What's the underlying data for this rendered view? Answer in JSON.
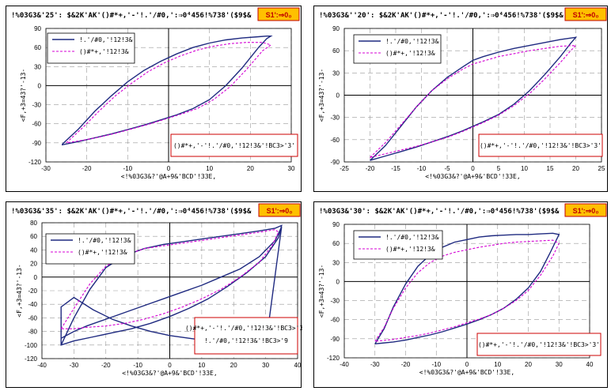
{
  "colors": {
    "series1": "#1f2a80",
    "series2": "#d400d4",
    "grid": "#999999",
    "badge_bg": "#ffc000",
    "badge_border": "#c00000",
    "annot_border": "#cc0000"
  },
  "chart_data": [
    {
      "type": "line",
      "title": "!%03G3&'25': $&2K'AK'()#*+,'-'!.'/#0,':⇒0⁴456!%738'($9$&",
      "badge": "S1':⇒0₀",
      "xlabel": "<!%03G3&?'@A+9&'BCD'!33E,",
      "ylabel": "<F,+3=43?'-13-",
      "xlim": [
        -30,
        30
      ],
      "ylim": [
        -120,
        90
      ],
      "xticks": [
        -30,
        -20,
        -10,
        0,
        10,
        20,
        30
      ],
      "yticks": [
        -120,
        -90,
        -60,
        -30,
        0,
        30,
        60,
        90
      ],
      "legend": [
        "!.'/#0,'!12!3&",
        "()#*+,'!12!3&"
      ],
      "legend_position": "top-left",
      "annotations": [
        "()#*+,'-'!.'/#0,'!12!3&'!BC3>'3'"
      ],
      "series": [
        {
          "name": "!.'/#0,'!12!3&",
          "style": "solid",
          "x": [
            -26,
            -22,
            -18,
            -14,
            -10,
            -6,
            -2,
            2,
            6,
            10,
            14,
            18,
            22,
            24,
            25,
            24,
            22,
            18,
            14,
            10,
            6,
            2,
            -2,
            -6,
            -10,
            -14,
            -18,
            -22,
            -26,
            -26
          ],
          "y": [
            -92,
            -68,
            -40,
            -16,
            6,
            24,
            38,
            50,
            60,
            67,
            72,
            75,
            77,
            78,
            78,
            74,
            60,
            28,
            0,
            -22,
            -36,
            -46,
            -54,
            -62,
            -69,
            -76,
            -82,
            -88,
            -93,
            -92
          ]
        },
        {
          "name": "()#*+,'!12!3&",
          "style": "dashed",
          "x": [
            -25,
            -21,
            -17,
            -13,
            -9,
            -5,
            -1,
            3,
            7,
            11,
            15,
            19,
            23,
            25,
            23,
            19,
            15,
            11,
            7,
            3,
            -1,
            -5,
            -9,
            -13,
            -17,
            -21,
            -25
          ],
          "y": [
            -90,
            -66,
            -40,
            -16,
            4,
            22,
            36,
            47,
            56,
            62,
            66,
            68,
            68,
            64,
            55,
            25,
            -2,
            -22,
            -36,
            -45,
            -53,
            -61,
            -68,
            -75,
            -81,
            -86,
            -90
          ]
        }
      ]
    },
    {
      "type": "line",
      "title": "!%03G3&''20': $&2K'AK'()#*+,'-'!.'/#0,':⇒0⁴456!%738'($9$&",
      "badge": "S1':⇒0₀",
      "xlabel": "<!%03G3&?'@A+9&'BCD'!33E,",
      "ylabel": "<F,+3=43?'-13-",
      "xlim": [
        -25,
        25
      ],
      "ylim": [
        -90,
        90
      ],
      "xticks": [
        -25,
        -20,
        -15,
        -10,
        -5,
        0,
        5,
        10,
        15,
        20,
        25
      ],
      "yticks": [
        -90,
        -60,
        -30,
        0,
        30,
        60,
        90
      ],
      "legend": [
        "!.'/#0,'!12!3&",
        "()#*+,'!12!3&"
      ],
      "legend_position": "top-left",
      "annotations": [
        "()#*+,'-'!.'/#0,'!12!3&'!BC3>'3'"
      ],
      "series": [
        {
          "name": "!.'/#0,'!12!3&",
          "style": "solid",
          "x": [
            -20,
            -17,
            -14,
            -11,
            -8,
            -5,
            -2,
            0,
            2,
            5,
            8,
            11,
            14,
            17,
            19,
            20,
            19,
            17,
            14,
            11,
            8,
            5,
            2,
            0,
            -2,
            -5,
            -8,
            -11,
            -14,
            -17,
            -20
          ],
          "y": [
            -88,
            -68,
            -42,
            -16,
            6,
            24,
            38,
            47,
            52,
            58,
            63,
            67,
            71,
            75,
            77,
            78,
            70,
            52,
            28,
            6,
            -12,
            -26,
            -36,
            -42,
            -48,
            -56,
            -63,
            -70,
            -76,
            -82,
            -88
          ]
        },
        {
          "name": "()#*+,'!12!3&",
          "style": "dashed",
          "x": [
            -20,
            -17,
            -14,
            -11,
            -8,
            -5,
            -2,
            0,
            2,
            5,
            8,
            11,
            14,
            17,
            20,
            19,
            17,
            14,
            11,
            8,
            5,
            2,
            0,
            -2,
            -5,
            -8,
            -11,
            -14,
            -17,
            -20
          ],
          "y": [
            -84,
            -64,
            -40,
            -16,
            6,
            22,
            35,
            42,
            46,
            52,
            56,
            60,
            63,
            66,
            67,
            60,
            44,
            22,
            2,
            -14,
            -27,
            -37,
            -43,
            -49,
            -57,
            -63,
            -69,
            -74,
            -79,
            -84
          ]
        }
      ]
    },
    {
      "type": "line",
      "title": "!%03G3&'35': $&2K'AK'()#*+,'-'!.'/#0,':⇒0⁴456!%738'($9$&",
      "badge": "S1':⇒0₀",
      "xlabel": "<!%03G3&?'@A+9&'BCD'!33E,",
      "ylabel": "<F,+3=43?'-13-",
      "xlim": [
        -40,
        40
      ],
      "ylim": [
        -120,
        80
      ],
      "xticks": [
        -40,
        -30,
        -20,
        -10,
        0,
        10,
        20,
        30,
        40
      ],
      "yticks": [
        -120,
        -100,
        -80,
        -60,
        -40,
        -20,
        0,
        20,
        40,
        60,
        80
      ],
      "legend": [
        "!.'/#0,'!12!3&",
        "()#*+,'!12!3&"
      ],
      "legend_position": "top-left",
      "annotations": [
        "()#*+,'-'!.'/#0,'!12!3&'!BC3>'3'",
        "!.'/#0,'!12!3&'!BC3>'9"
      ],
      "series": [
        {
          "name": "!.'/#0,'!12!3&",
          "style": "solid",
          "x": [
            -34,
            -30,
            -25,
            -20,
            -14,
            -8,
            -2,
            4,
            10,
            16,
            22,
            28,
            33,
            35,
            34,
            30,
            24,
            18,
            12,
            6,
            0,
            -6,
            -12,
            -18,
            -24,
            -30,
            -34,
            -34,
            -30,
            -24,
            -18,
            -12,
            -6,
            0,
            6,
            12,
            18,
            24,
            30,
            35,
            33,
            28,
            22,
            16,
            10,
            4,
            -2,
            -8,
            -14,
            -20,
            -26,
            -30,
            -34
          ],
          "y": [
            -100,
            -60,
            -18,
            14,
            32,
            42,
            48,
            52,
            56,
            60,
            64,
            68,
            72,
            76,
            58,
            30,
            6,
            -14,
            -32,
            -46,
            -58,
            -68,
            -76,
            -82,
            -88,
            -94,
            -100,
            -44,
            -30,
            -48,
            -62,
            -72,
            -80,
            -86,
            -90,
            -94,
            -98,
            -100,
            -102,
            74,
            54,
            30,
            12,
            0,
            -12,
            -22,
            -32,
            -42,
            -52,
            -62,
            -72,
            -80,
            -90
          ]
        },
        {
          "name": "()#*+,'!12!3&",
          "style": "dashed",
          "x": [
            -34,
            -30,
            -25,
            -20,
            -14,
            -8,
            -2,
            4,
            10,
            16,
            22,
            28,
            33,
            34,
            32,
            28,
            22,
            16,
            10,
            4,
            -2,
            -8,
            -14,
            -20,
            -26,
            -30,
            -34
          ],
          "y": [
            -76,
            -46,
            -10,
            16,
            32,
            42,
            46,
            50,
            54,
            58,
            62,
            66,
            70,
            66,
            46,
            22,
            0,
            -18,
            -32,
            -44,
            -54,
            -62,
            -68,
            -72,
            -74,
            -76,
            -76
          ]
        }
      ]
    },
    {
      "type": "line",
      "title": "!%03G3&'30': $&2K'AK'()#*+,'-'!.'/#0,':⇒0⁴456!%738'($9$&",
      "badge": "S1':⇒0₀",
      "xlabel": "<!%03G3&?'@A+9&'BCD'!33E,",
      "ylabel": "<F,+3=43?'-13-",
      "xlim": [
        -40,
        40
      ],
      "ylim": [
        -120,
        90
      ],
      "xticks": [
        -40,
        -30,
        -20,
        -10,
        0,
        10,
        20,
        30,
        40
      ],
      "yticks": [
        -120,
        -90,
        -60,
        -30,
        0,
        30,
        60,
        90
      ],
      "legend": [
        "!.'/#0,'!12!3&",
        "()#*+,'!12!3&"
      ],
      "legend_position": "top-left",
      "annotations": [
        "()#*+,'-'!.'/#0,'!12!3&'!BC3>'3'"
      ],
      "series": [
        {
          "name": "!.'/#0,'!12!3&",
          "style": "solid",
          "x": [
            -30,
            -27,
            -24,
            -20,
            -16,
            -12,
            -8,
            -4,
            0,
            4,
            8,
            12,
            16,
            20,
            24,
            28,
            30,
            29,
            27,
            24,
            20,
            16,
            12,
            8,
            4,
            0,
            -4,
            -8,
            -12,
            -16,
            -20,
            -24,
            -28,
            -30
          ],
          "y": [
            -98,
            -74,
            -40,
            -4,
            24,
            42,
            54,
            62,
            66,
            70,
            72,
            73,
            74,
            74,
            75,
            76,
            74,
            64,
            44,
            16,
            -10,
            -28,
            -42,
            -52,
            -60,
            -67,
            -73,
            -79,
            -84,
            -88,
            -92,
            -95,
            -97,
            -98
          ]
        },
        {
          "name": "()#*+,'!12!3&",
          "style": "dashed",
          "x": [
            -30,
            -27,
            -24,
            -20,
            -16,
            -12,
            -8,
            -4,
            0,
            4,
            8,
            12,
            16,
            20,
            24,
            28,
            30,
            28,
            24,
            20,
            16,
            12,
            8,
            4,
            0,
            -4,
            -8,
            -12,
            -16,
            -20,
            -24,
            -28,
            -30
          ],
          "y": [
            -94,
            -72,
            -42,
            -10,
            14,
            30,
            40,
            46,
            50,
            54,
            57,
            60,
            62,
            63,
            64,
            65,
            60,
            40,
            10,
            -14,
            -30,
            -42,
            -52,
            -59,
            -65,
            -71,
            -76,
            -81,
            -85,
            -88,
            -91,
            -93,
            -94
          ]
        }
      ]
    }
  ]
}
